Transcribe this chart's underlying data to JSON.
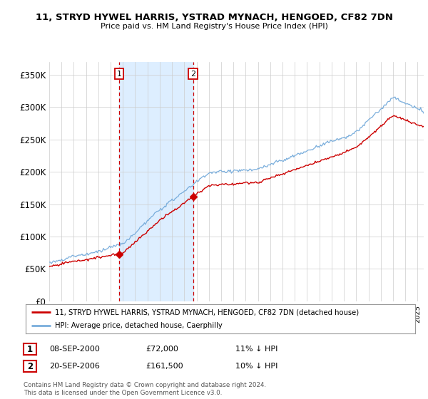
{
  "title": "11, STRYD HYWEL HARRIS, YSTRAD MYNACH, HENGOED, CF82 7DN",
  "subtitle": "Price paid vs. HM Land Registry's House Price Index (HPI)",
  "legend_line1": "11, STRYD HYWEL HARRIS, YSTRAD MYNACH, HENGOED, CF82 7DN (detached house)",
  "legend_line2": "HPI: Average price, detached house, Caerphilly",
  "xlim_start": 1995.0,
  "xlim_end": 2025.5,
  "ylim_min": 0,
  "ylim_max": 370000,
  "sale1_date": 2000.69,
  "sale1_price": 72000,
  "sale1_label": "1",
  "sale1_year_label": "08-SEP-2000",
  "sale1_hpi_diff": "11% ↓ HPI",
  "sale2_date": 2006.72,
  "sale2_price": 161500,
  "sale2_label": "2",
  "sale2_year_label": "20-SEP-2006",
  "sale2_hpi_diff": "10% ↓ HPI",
  "annotation_box_color": "#cc0000",
  "hpi_color": "#7aaedc",
  "sale_color": "#cc0000",
  "shade_color": "#ddeeff",
  "background_color": "#ffffff",
  "grid_color": "#cccccc",
  "footer_text": "Contains HM Land Registry data © Crown copyright and database right 2024.\nThis data is licensed under the Open Government Licence v3.0.",
  "yticks": [
    0,
    50000,
    100000,
    150000,
    200000,
    250000,
    300000,
    350000
  ],
  "ytick_labels": [
    "£0",
    "£50K",
    "£100K",
    "£150K",
    "£200K",
    "£250K",
    "£300K",
    "£350K"
  ]
}
